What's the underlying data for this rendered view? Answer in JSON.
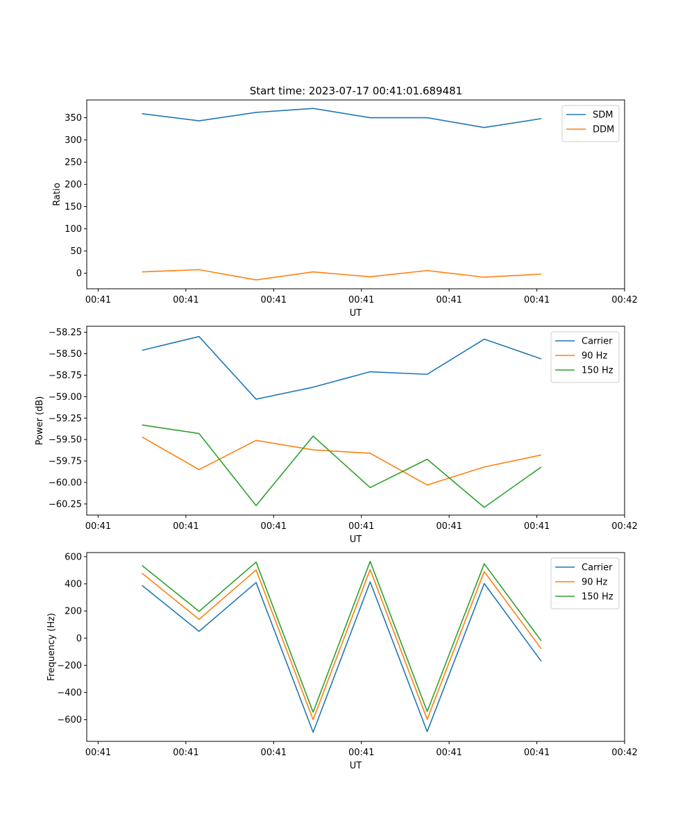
{
  "figure_title": "Start time: 2023-07-17 00:41:01.689481",
  "colors": {
    "blue": "#1f77b4",
    "orange": "#ff7f0e",
    "green": "#2ca02c"
  },
  "chart_data": [
    {
      "type": "line",
      "xlabel": "UT",
      "ylabel": "Ratio",
      "x_ticks": [
        0,
        1,
        2,
        3,
        4,
        5,
        6
      ],
      "x_tick_labels": [
        "00:41",
        "00:41",
        "00:41",
        "00:41",
        "00:41",
        "00:41",
        "00:42"
      ],
      "xlim": [
        -0.13,
        6.0
      ],
      "x": [
        0.5,
        1.15,
        1.8,
        2.45,
        3.1,
        3.75,
        4.4,
        5.05
      ],
      "ylim": [
        -35,
        390
      ],
      "y_ticks": [
        0,
        50,
        100,
        150,
        200,
        250,
        300,
        350
      ],
      "y_tick_labels": [
        "0",
        "50",
        "100",
        "150",
        "200",
        "250",
        "300",
        "350"
      ],
      "legend_loc": "upper right",
      "series": [
        {
          "name": "SDM",
          "color": "blue",
          "values": [
            359,
            343,
            362,
            371,
            350,
            350,
            328,
            348
          ]
        },
        {
          "name": "DDM",
          "color": "orange",
          "values": [
            3,
            8,
            -15,
            3,
            -8,
            6,
            -9,
            -2
          ]
        }
      ]
    },
    {
      "type": "line",
      "xlabel": "UT",
      "ylabel": "Power (dB)",
      "x_ticks": [
        0,
        1,
        2,
        3,
        4,
        5,
        6
      ],
      "x_tick_labels": [
        "00:41",
        "00:41",
        "00:41",
        "00:41",
        "00:41",
        "00:41",
        "00:42"
      ],
      "xlim": [
        -0.13,
        6.0
      ],
      "x": [
        0.5,
        1.15,
        1.8,
        2.45,
        3.1,
        3.75,
        4.4,
        5.05
      ],
      "ylim": [
        -60.38,
        -58.18
      ],
      "y_ticks": [
        -58.25,
        -58.5,
        -58.75,
        -59.0,
        -59.25,
        -59.5,
        -59.75,
        -60.0,
        -60.25
      ],
      "y_tick_labels": [
        "−58.25",
        "−58.50",
        "−58.75",
        "−59.00",
        "−59.25",
        "−59.50",
        "−59.75",
        "−60.00",
        "−60.25"
      ],
      "legend_loc": "upper right",
      "series": [
        {
          "name": "Carrier",
          "color": "blue",
          "values": [
            -58.46,
            -58.3,
            -59.03,
            -58.89,
            -58.71,
            -58.74,
            -58.33,
            -58.56
          ]
        },
        {
          "name": "90 Hz",
          "color": "orange",
          "values": [
            -59.47,
            -59.85,
            -59.51,
            -59.62,
            -59.66,
            -60.03,
            -59.82,
            -59.68
          ]
        },
        {
          "name": "150 Hz",
          "color": "green",
          "values": [
            -59.33,
            -59.43,
            -60.27,
            -59.46,
            -60.06,
            -59.73,
            -60.29,
            -59.82
          ]
        }
      ]
    },
    {
      "type": "line",
      "xlabel": "UT",
      "ylabel": "Frequency (Hz)",
      "x_ticks": [
        0,
        1,
        2,
        3,
        4,
        5,
        6
      ],
      "x_tick_labels": [
        "00:41",
        "00:41",
        "00:41",
        "00:41",
        "00:41",
        "00:41",
        "00:42"
      ],
      "xlim": [
        -0.13,
        6.0
      ],
      "x": [
        0.5,
        1.15,
        1.8,
        2.45,
        3.1,
        3.75,
        4.4,
        5.05
      ],
      "ylim": [
        -760,
        630
      ],
      "y_ticks": [
        600,
        400,
        200,
        0,
        -200,
        -400,
        -600
      ],
      "y_tick_labels": [
        "600",
        "400",
        "200",
        "0",
        "−200",
        "−400",
        "−600"
      ],
      "legend_loc": "upper right",
      "series": [
        {
          "name": "Carrier",
          "color": "blue",
          "values": [
            388,
            50,
            410,
            -693,
            414,
            -688,
            402,
            -170
          ]
        },
        {
          "name": "90 Hz",
          "color": "orange",
          "values": [
            478,
            138,
            502,
            -600,
            505,
            -598,
            490,
            -78
          ]
        },
        {
          "name": "150 Hz",
          "color": "green",
          "values": [
            535,
            197,
            560,
            -545,
            565,
            -540,
            548,
            -20
          ]
        }
      ]
    }
  ]
}
